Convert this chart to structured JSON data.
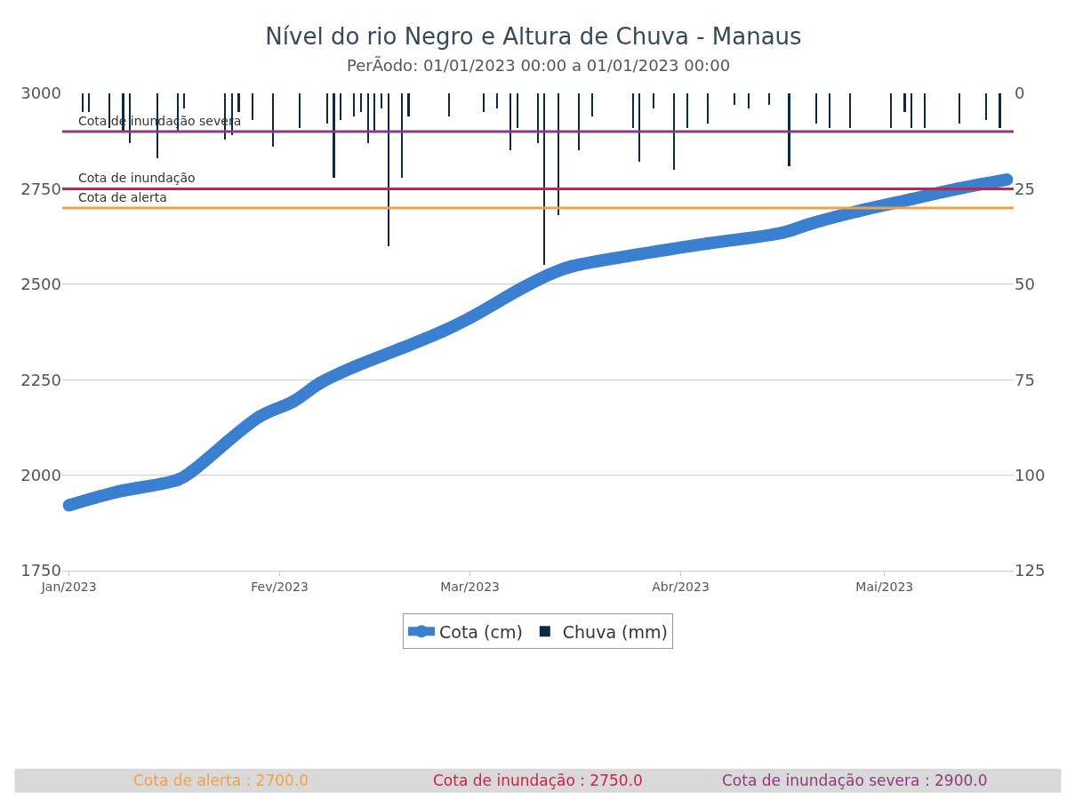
{
  "chart_data": {
    "type": "line",
    "title": "Nível do rio Negro e Altura de Chuva - Manaus",
    "subtitle": "PerÃodo: 01/01/2023 00:00 a 01/01/2023 00:00",
    "xlim": [
      "2022-12-31",
      "2023-05-20"
    ],
    "xticks": [
      {
        "value": "2023-01-01",
        "label": "Jan/2023"
      },
      {
        "value": "2023-02-01",
        "label": "Fev/2023"
      },
      {
        "value": "2023-03-01",
        "label": "Mar/2023"
      },
      {
        "value": "2023-04-01",
        "label": "Abr/2023"
      },
      {
        "value": "2023-05-01",
        "label": "Mai/2023"
      }
    ],
    "ylim": [
      1750,
      3000
    ],
    "yticks": [
      1750,
      2000,
      2250,
      2500,
      2750,
      3000
    ],
    "y2lim": [
      125,
      0
    ],
    "y2ticks": [
      0,
      25,
      50,
      75,
      100,
      125
    ],
    "grid": "y",
    "legend": "bottom",
    "marker": "circle",
    "series": [
      {
        "name": "Cota (cm)",
        "color": "#3a7fd0",
        "x": [
          "2023-01-01",
          "2023-01-08",
          "2023-01-17",
          "2023-01-19",
          "2023-01-29",
          "2023-02-03",
          "2023-02-07",
          "2023-02-12",
          "2023-02-19",
          "2023-02-25",
          "2023-03-01",
          "2023-03-09",
          "2023-03-13",
          "2023-03-16",
          "2023-03-26",
          "2023-04-05",
          "2023-04-16",
          "2023-04-20",
          "2023-04-27",
          "2023-05-05",
          "2023-05-12",
          "2023-05-19"
        ],
        "values": [
          1921,
          1956,
          1988,
          2009,
          2153,
          2193,
          2242,
          2284,
          2333,
          2377,
          2412,
          2493,
          2528,
          2547,
          2579,
          2607,
          2635,
          2658,
          2691,
          2723,
          2751,
          2774
        ]
      },
      {
        "name": "Chuva (mm)",
        "type": "bar",
        "axis": "y2",
        "color": "#0d2a44",
        "x": [
          "2023-01-03",
          "2023-01-04",
          "2023-01-07",
          "2023-01-09",
          "2023-01-10",
          "2023-01-14",
          "2023-01-17",
          "2023-01-18",
          "2023-01-24",
          "2023-01-25",
          "2023-01-26",
          "2023-01-28",
          "2023-01-31",
          "2023-02-04",
          "2023-02-08",
          "2023-02-09",
          "2023-02-10",
          "2023-02-12",
          "2023-02-13",
          "2023-02-14",
          "2023-02-15",
          "2023-02-16",
          "2023-02-17",
          "2023-02-19",
          "2023-02-20",
          "2023-02-26",
          "2023-03-03",
          "2023-03-05",
          "2023-03-07",
          "2023-03-08",
          "2023-03-11",
          "2023-03-12",
          "2023-03-14",
          "2023-03-17",
          "2023-03-19",
          "2023-03-25",
          "2023-03-26",
          "2023-03-28",
          "2023-03-31",
          "2023-04-02",
          "2023-04-05",
          "2023-04-09",
          "2023-04-11",
          "2023-04-14",
          "2023-04-17",
          "2023-04-21",
          "2023-04-23",
          "2023-04-26",
          "2023-05-02",
          "2023-05-04",
          "2023-05-05",
          "2023-05-07",
          "2023-05-12",
          "2023-05-16",
          "2023-05-18"
        ],
        "values": [
          5,
          5,
          9,
          10,
          13,
          17,
          10,
          4,
          12,
          11,
          5,
          7,
          14,
          9,
          8,
          22,
          7,
          6,
          5,
          13,
          10,
          4,
          40,
          22,
          6,
          6,
          5,
          4,
          15,
          9,
          13,
          45,
          32,
          15,
          6,
          9,
          18,
          4,
          20,
          9,
          8,
          3,
          4,
          3,
          19,
          8,
          9,
          9,
          9,
          5,
          9,
          9,
          8,
          7,
          9
        ]
      }
    ],
    "ref_lines": [
      {
        "axis": "y",
        "value": 2700,
        "label": "Cota de alerta",
        "color": "#f0a048"
      },
      {
        "axis": "y",
        "value": 2750,
        "label": "Cota de inundação",
        "color": "#c8234a"
      },
      {
        "axis": "y",
        "value": 2900,
        "label": "Cota de inundação severa",
        "color": "#8e3a80"
      }
    ],
    "annotations": [
      "Cota de alerta : 2700.0",
      "Cota de inundação : 2750.0",
      "Cota de inundação severa : 2900.0"
    ]
  }
}
